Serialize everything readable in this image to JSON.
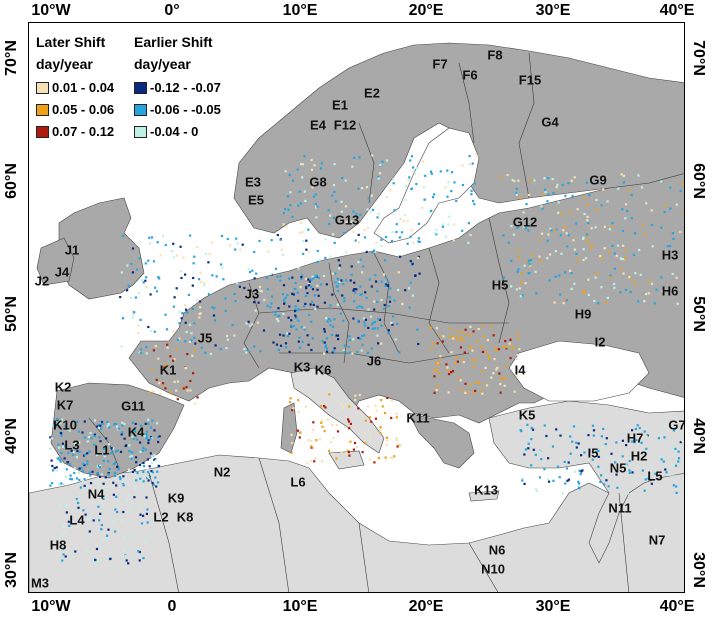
{
  "axes": {
    "top": [
      "10°W",
      "0°",
      "10°E",
      "20°E",
      "30°E",
      "40°E"
    ],
    "bottom": [
      "10°W",
      "0",
      "10°E",
      "20°E",
      "30°E",
      "40°E"
    ],
    "left": [
      "70°N",
      "60°N",
      "50°N",
      "40°N",
      "30°N"
    ],
    "right": [
      "70°N",
      "60°N",
      "50°N",
      "40°N",
      "30°N"
    ]
  },
  "legend": {
    "later_title": "Later Shift",
    "earlier_title": "Earlier Shift",
    "later_unit": "day/year",
    "earlier_unit": "day/year",
    "later_classes": [
      {
        "label": "0.01 - 0.04",
        "color": "#f6e0b5"
      },
      {
        "label": "0.05 - 0.06",
        "color": "#f0a018"
      },
      {
        "label": "0.07 - 0.12",
        "color": "#b01a0c"
      }
    ],
    "earlier_classes": [
      {
        "label": "-0.12 - -0.07",
        "color": "#0a2a82"
      },
      {
        "label": "-0.06 - -0.05",
        "color": "#27a3de"
      },
      {
        "label": "-0.04 - 0",
        "color": "#bff0e6"
      }
    ]
  },
  "colors": {
    "land_study": "#a9a9a9",
    "land_other": "#dcdcdc",
    "sea": "#ffffff",
    "border": "#3a3a3a"
  },
  "region_labels": [
    "F7",
    "F8",
    "F6",
    "F15",
    "E2",
    "E1",
    "G4",
    "E4",
    "F12",
    "G8",
    "E3",
    "E5",
    "G9",
    "G13",
    "G12",
    "J1",
    "J4",
    "J2",
    "H3",
    "J3",
    "H5",
    "H6",
    "H9",
    "J5",
    "I2",
    "K1",
    "K3",
    "K6",
    "J6",
    "I4",
    "K2",
    "K7",
    "G11",
    "K10",
    "K4",
    "L3",
    "L1",
    "K11",
    "K5",
    "G7",
    "H7",
    "I5",
    "H2",
    "N5",
    "L5",
    "N2",
    "N4",
    "K9",
    "L6",
    "L4",
    "L2",
    "K8",
    "K13",
    "N11",
    "H8",
    "N7",
    "N6",
    "N10",
    "M3"
  ]
}
